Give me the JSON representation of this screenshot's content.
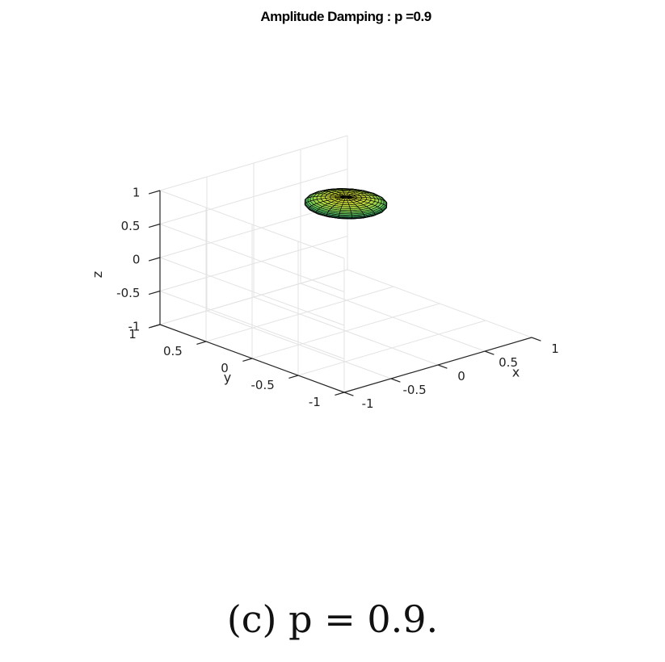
{
  "chart_data": {
    "type": "surface3d",
    "title": "Amplitude Damping : p =0.9",
    "xlabel": "x",
    "ylabel": "y",
    "zlabel": "z",
    "xlim": [
      -1,
      1
    ],
    "ylim": [
      -1,
      1
    ],
    "zlim": [
      -1,
      1
    ],
    "x_ticks": [
      "-1",
      "-0.5",
      "0",
      "0.5",
      "1"
    ],
    "y_ticks": [
      "-1",
      "-0.5",
      "0",
      "0.5",
      "1"
    ],
    "z_ticks": [
      "-1",
      "-0.5",
      "0",
      "0.5",
      "1"
    ],
    "grid": true,
    "surface": {
      "shape": "ellipsoid",
      "center": [
        0,
        0,
        0.9
      ],
      "radii": [
        0.316,
        0.316,
        0.1
      ],
      "colormap": "viridis",
      "edge_color": "#000000"
    }
  },
  "caption": "(c) p = 0.9."
}
